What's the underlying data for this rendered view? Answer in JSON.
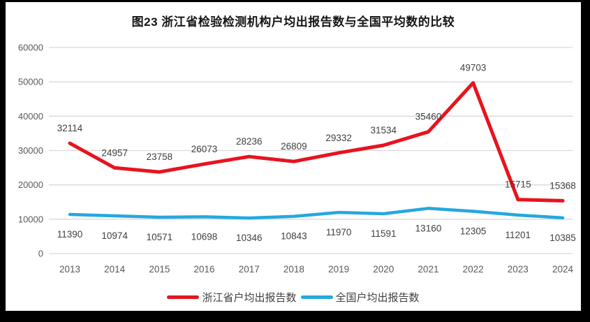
{
  "title": "图23  浙江省检验检测机构户均出报告数与全国平均数的比较",
  "chart_data": {
    "type": "line",
    "categories": [
      "2013",
      "2014",
      "2015",
      "2016",
      "2017",
      "2018",
      "2019",
      "2020",
      "2021",
      "2022",
      "2023",
      "2024"
    ],
    "series": [
      {
        "name": "浙江省户均出报告数",
        "color": "#e8131d",
        "values": [
          32114,
          24957,
          23758,
          26073,
          28236,
          26809,
          29332,
          31534,
          35460,
          49703,
          15715,
          15368
        ]
      },
      {
        "name": "全国户均出报告数",
        "color": "#25a8e0",
        "values": [
          11390,
          10974,
          10571,
          10698,
          10346,
          10843,
          11970,
          11591,
          13160,
          12305,
          11201,
          10385
        ]
      }
    ],
    "ylim": [
      0,
      60000
    ],
    "yticks": [
      0,
      10000,
      20000,
      30000,
      40000,
      50000,
      60000
    ],
    "grid": true,
    "legend_position": "bottom",
    "data_labels": true
  },
  "legend": {
    "items": [
      {
        "label": "浙江省户均出报告数",
        "color": "#e8131d"
      },
      {
        "label": "全国户均出报告数",
        "color": "#25a8e0"
      }
    ]
  },
  "colors": {
    "background": "#ffffff",
    "frame": "#000000",
    "gridline": "#d9d9d9",
    "axis_tick_text": "#595959",
    "data_label_text": "#404040"
  }
}
